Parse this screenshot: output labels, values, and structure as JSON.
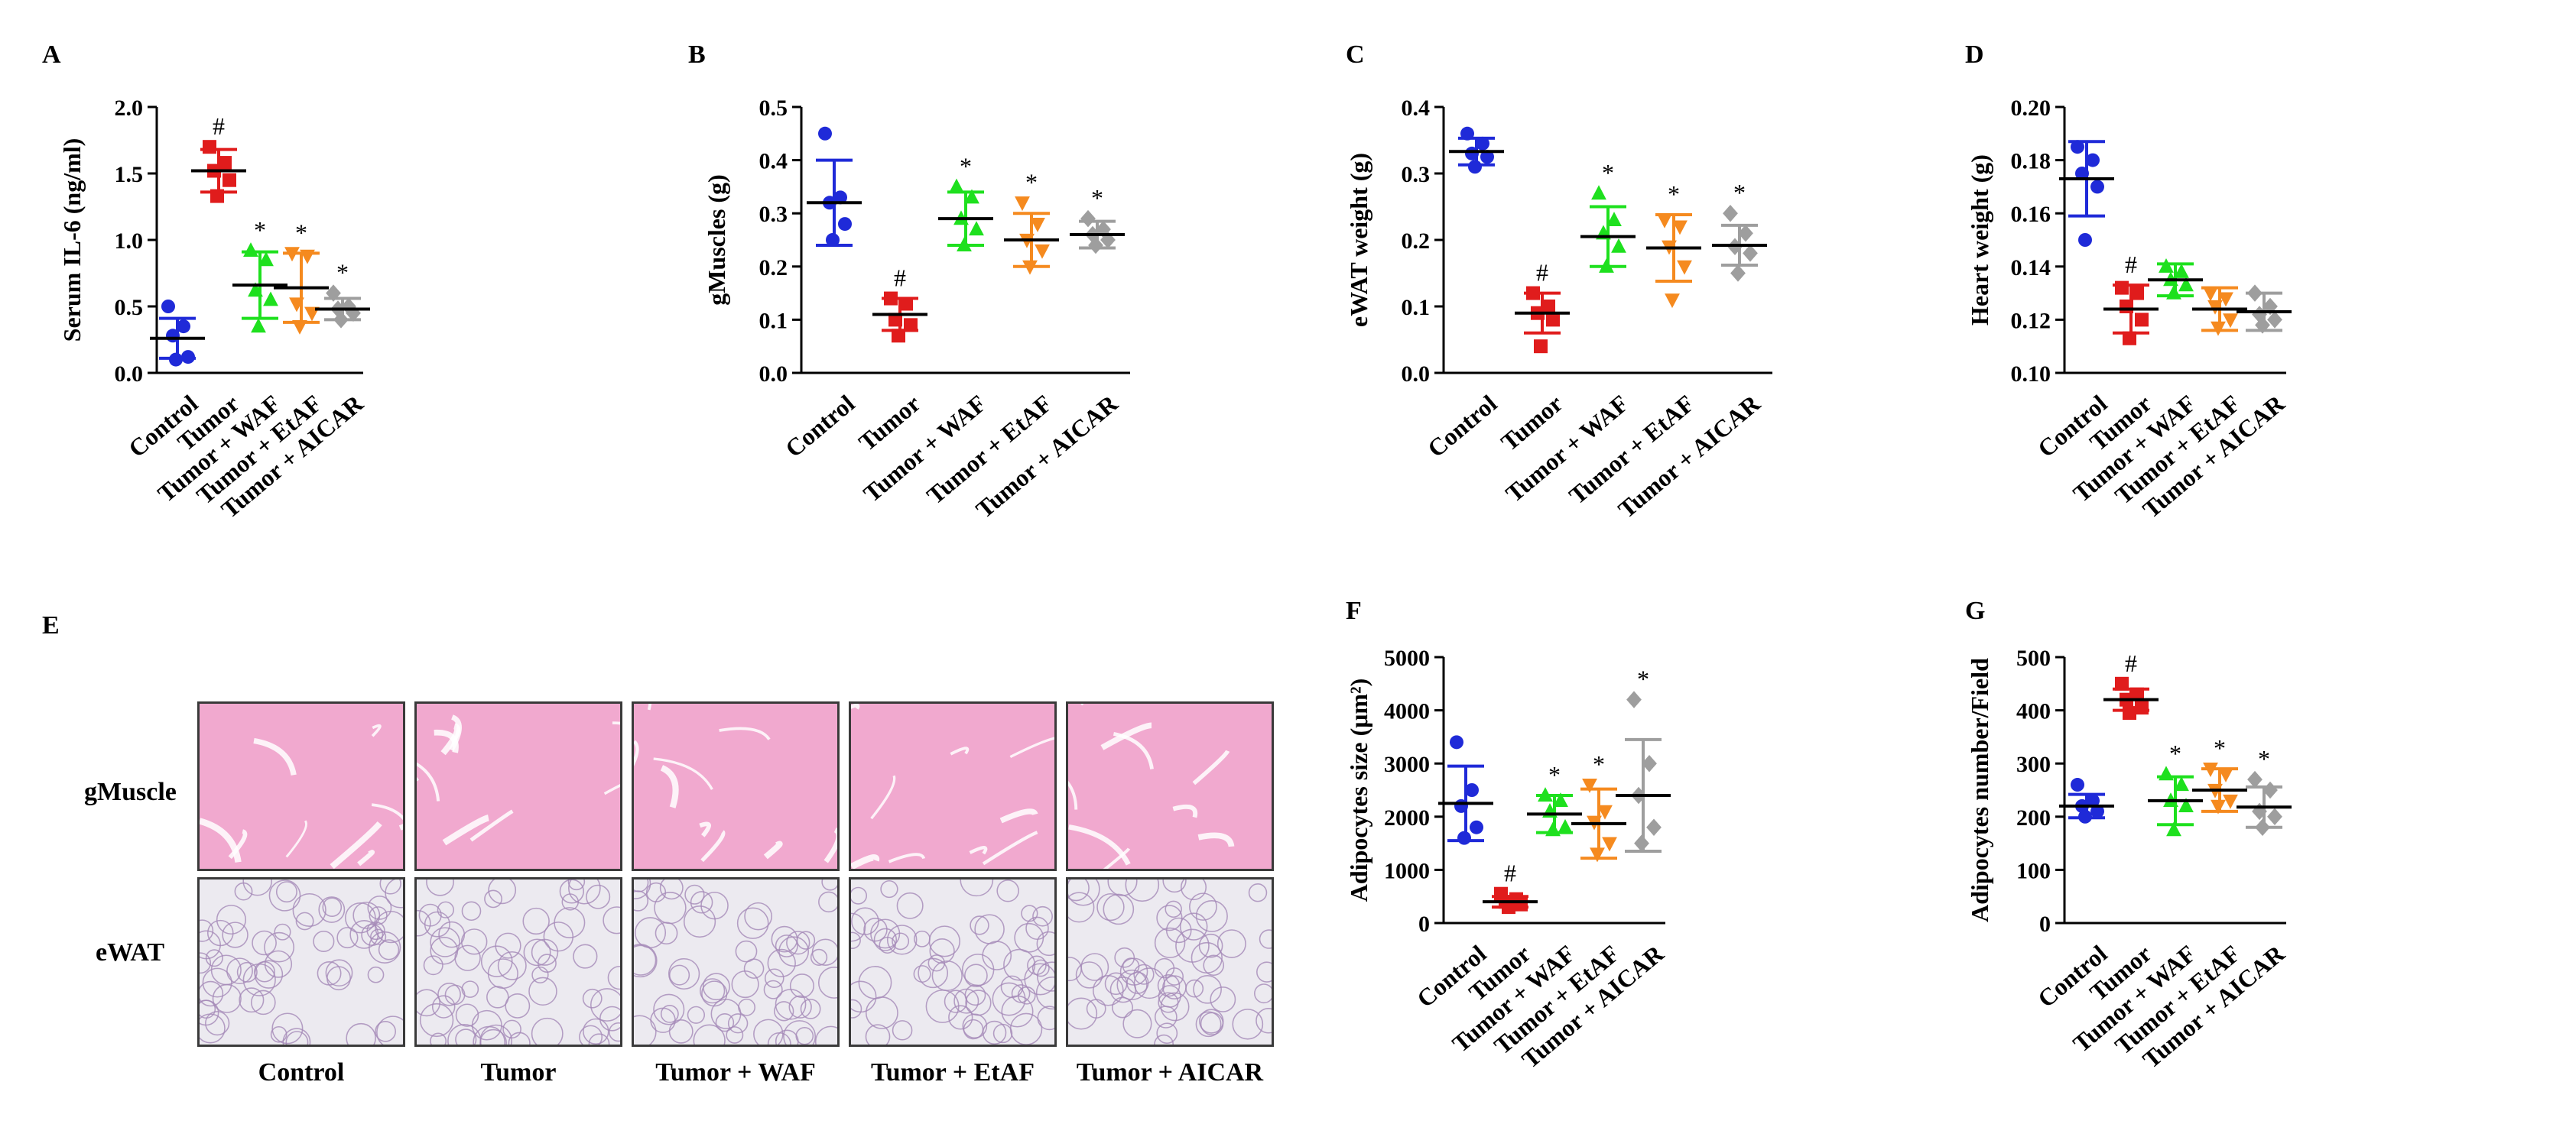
{
  "panel_E": {
    "letter": "E",
    "row_labels": [
      "gMuscle",
      "eWAT"
    ],
    "col_labels": [
      "Control",
      "Tumor",
      "Tumor + WAF",
      "Tumor + EtAF",
      "Tumor + AICAR"
    ],
    "tile_colors": {
      "gMuscle": "#f1a9cf",
      "eWAT": "#eceaf0"
    }
  },
  "colors": {
    "Control": "#1f2ad8",
    "Tumor": "#e01c1c",
    "Tumor + WAF": "#1ee01e",
    "Tumor + EtAF": "#f58a1f",
    "Tumor + AICAR": "#9e9e9e"
  },
  "chart_data": [
    {
      "id": "A",
      "letter": "A",
      "type": "scatter",
      "title": "",
      "xlabel": "",
      "ylabel": "Serum IL-6 (ng/ml)",
      "categories": [
        "Control",
        "Tumor",
        "Tumor + WAF",
        "Tumor + EtAF",
        "Tumor + AICAR"
      ],
      "ylim": [
        0.0,
        2.0
      ],
      "yticks": [
        "0.0",
        "0.5",
        "1.0",
        "1.5",
        "2.0"
      ],
      "markers": [
        "circle",
        "square",
        "triangle-up",
        "triangle-down",
        "diamond"
      ],
      "points": [
        [
          0.5,
          0.35,
          0.28,
          0.12,
          0.1
        ],
        [
          1.7,
          1.58,
          1.52,
          1.45,
          1.33
        ],
        [
          0.92,
          0.85,
          0.62,
          0.55,
          0.35
        ],
        [
          0.9,
          0.88,
          0.52,
          0.45,
          0.35
        ],
        [
          0.6,
          0.5,
          0.48,
          0.45,
          0.4
        ]
      ],
      "means": [
        0.26,
        1.52,
        0.66,
        0.64,
        0.48
      ],
      "sd": [
        0.15,
        0.16,
        0.25,
        0.26,
        0.08
      ],
      "annotations": [
        "",
        "#",
        "*",
        "*",
        "*"
      ]
    },
    {
      "id": "B",
      "letter": "B",
      "type": "scatter",
      "title": "",
      "xlabel": "",
      "ylabel": "gMuscles (g)",
      "categories": [
        "Control",
        "Tumor",
        "Tumor + WAF",
        "Tumor + EtAF",
        "Tumor + AICAR"
      ],
      "ylim": [
        0.0,
        0.5
      ],
      "yticks": [
        "0.0",
        "0.1",
        "0.2",
        "0.3",
        "0.4",
        "0.5"
      ],
      "markers": [
        "circle",
        "square",
        "triangle-up",
        "triangle-down",
        "diamond"
      ],
      "points": [
        [
          0.45,
          0.33,
          0.32,
          0.28,
          0.25
        ],
        [
          0.14,
          0.13,
          0.1,
          0.09,
          0.07
        ],
        [
          0.35,
          0.33,
          0.29,
          0.27,
          0.24
        ],
        [
          0.32,
          0.28,
          0.25,
          0.23,
          0.2
        ],
        [
          0.29,
          0.27,
          0.26,
          0.25,
          0.24
        ]
      ],
      "means": [
        0.32,
        0.11,
        0.29,
        0.25,
        0.26
      ],
      "sd": [
        0.08,
        0.03,
        0.05,
        0.05,
        0.025
      ],
      "annotations": [
        "",
        "#",
        "*",
        "*",
        "*"
      ]
    },
    {
      "id": "C",
      "letter": "C",
      "type": "scatter",
      "title": "",
      "xlabel": "",
      "ylabel": "eWAT weight (g)",
      "categories": [
        "Control",
        "Tumor",
        "Tumor + WAF",
        "Tumor + EtAF",
        "Tumor + AICAR"
      ],
      "ylim": [
        0.0,
        0.4
      ],
      "yticks": [
        "0.0",
        "0.1",
        "0.2",
        "0.3",
        "0.4"
      ],
      "markers": [
        "circle",
        "square",
        "triangle-up",
        "triangle-down",
        "diamond"
      ],
      "points": [
        [
          0.36,
          0.345,
          0.33,
          0.325,
          0.31
        ],
        [
          0.12,
          0.1,
          0.09,
          0.08,
          0.04
        ],
        [
          0.27,
          0.23,
          0.21,
          0.19,
          0.16
        ],
        [
          0.23,
          0.22,
          0.19,
          0.16,
          0.11
        ],
        [
          0.24,
          0.21,
          0.19,
          0.18,
          0.15
        ]
      ],
      "means": [
        0.333,
        0.09,
        0.205,
        0.188,
        0.192
      ],
      "sd": [
        0.02,
        0.03,
        0.045,
        0.05,
        0.03
      ],
      "annotations": [
        "",
        "#",
        "*",
        "*",
        "*"
      ]
    },
    {
      "id": "D",
      "letter": "D",
      "type": "scatter",
      "title": "",
      "xlabel": "",
      "ylabel": "Heart weight (g)",
      "categories": [
        "Control",
        "Tumor",
        "Tumor + WAF",
        "Tumor + EtAF",
        "Tumor + AICAR"
      ],
      "ylim": [
        0.1,
        0.2
      ],
      "yticks": [
        "0.10",
        "0.12",
        "0.14",
        "0.16",
        "0.18",
        "0.20"
      ],
      "markers": [
        "circle",
        "square",
        "triangle-up",
        "triangle-down",
        "diamond"
      ],
      "points": [
        [
          0.185,
          0.18,
          0.175,
          0.17,
          0.15
        ],
        [
          0.132,
          0.13,
          0.125,
          0.12,
          0.113
        ],
        [
          0.14,
          0.138,
          0.135,
          0.133,
          0.13
        ],
        [
          0.13,
          0.128,
          0.125,
          0.12,
          0.117
        ],
        [
          0.13,
          0.125,
          0.122,
          0.12,
          0.118
        ]
      ],
      "means": [
        0.173,
        0.124,
        0.135,
        0.124,
        0.123
      ],
      "sd": [
        0.014,
        0.009,
        0.006,
        0.008,
        0.007
      ],
      "annotations": [
        "",
        "#",
        "",
        "",
        ""
      ]
    },
    {
      "id": "F",
      "letter": "F",
      "type": "scatter",
      "title": "",
      "xlabel": "",
      "ylabel": "Adipocytes size (μm²)",
      "categories": [
        "Control",
        "Tumor",
        "Tumor + WAF",
        "Tumor + EtAF",
        "Tumor + AICAR"
      ],
      "ylim": [
        0,
        5000
      ],
      "yticks": [
        "0",
        "1000",
        "2000",
        "3000",
        "4000",
        "5000"
      ],
      "markers": [
        "circle",
        "square",
        "triangle-up",
        "triangle-down",
        "diamond"
      ],
      "points": [
        [
          3400,
          2500,
          2200,
          1800,
          1600
        ],
        [
          550,
          450,
          400,
          350,
          300
        ],
        [
          2400,
          2300,
          2100,
          1800,
          1750
        ],
        [
          2600,
          2100,
          1900,
          1500,
          1300
        ],
        [
          4200,
          3000,
          2400,
          1800,
          1500
        ]
      ],
      "means": [
        2250,
        400,
        2050,
        1870,
        2400
      ],
      "sd": [
        700,
        100,
        350,
        650,
        1050
      ],
      "annotations": [
        "",
        "#",
        "*",
        "*",
        "*"
      ]
    },
    {
      "id": "G",
      "letter": "G",
      "type": "scatter",
      "title": "",
      "xlabel": "",
      "ylabel": "Adipocytes number/Field",
      "categories": [
        "Control",
        "Tumor",
        "Tumor + WAF",
        "Tumor + EtAF",
        "Tumor + AICAR"
      ],
      "ylim": [
        0,
        500
      ],
      "yticks": [
        "0",
        "100",
        "200",
        "300",
        "400",
        "500"
      ],
      "markers": [
        "circle",
        "square",
        "triangle-up",
        "triangle-down",
        "diamond"
      ],
      "points": [
        [
          260,
          230,
          220,
          210,
          200
        ],
        [
          450,
          430,
          420,
          405,
          395
        ],
        [
          280,
          260,
          230,
          220,
          175
        ],
        [
          290,
          280,
          250,
          230,
          220
        ],
        [
          270,
          250,
          210,
          200,
          180
        ]
      ],
      "means": [
        220,
        420,
        230,
        250,
        218
      ],
      "sd": [
        22,
        20,
        45,
        40,
        38
      ],
      "annotations": [
        "",
        "#",
        "*",
        "*",
        "*"
      ]
    }
  ]
}
